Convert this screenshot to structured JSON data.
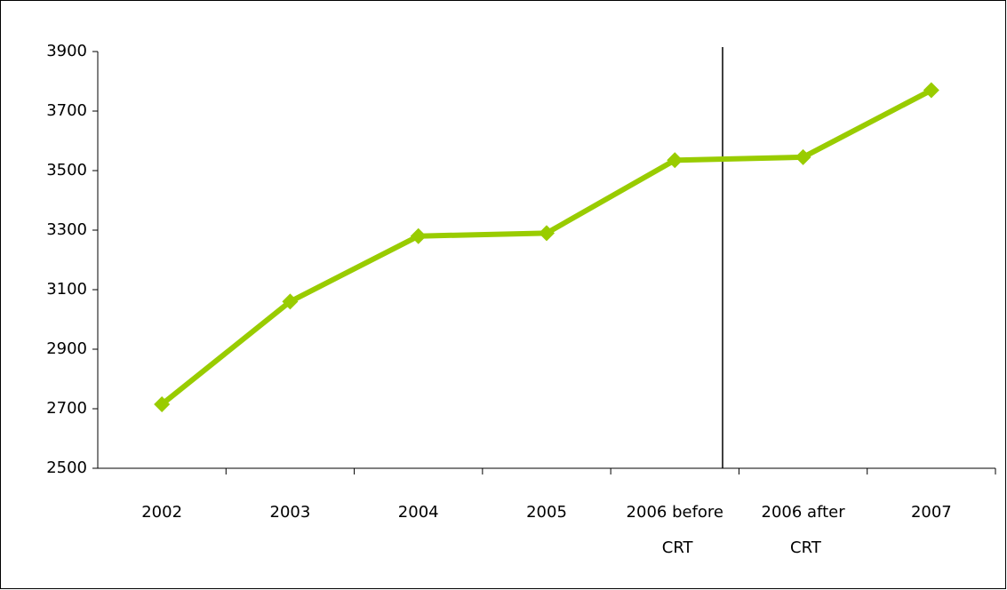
{
  "chart_data": {
    "type": "line",
    "categories": [
      "2002",
      "2003",
      "2004",
      "2005",
      "2006 before CRT",
      "2006 after CRT",
      "2007"
    ],
    "series": [
      {
        "name": "Series 1",
        "color": "#99cc00",
        "values": [
          2715,
          3060,
          3280,
          3290,
          3535,
          3545,
          3770
        ]
      }
    ],
    "ylim": [
      2500,
      3900
    ],
    "yticks": [
      2500,
      2700,
      2900,
      3100,
      3300,
      3500,
      3700,
      3900
    ],
    "grid": false
  }
}
